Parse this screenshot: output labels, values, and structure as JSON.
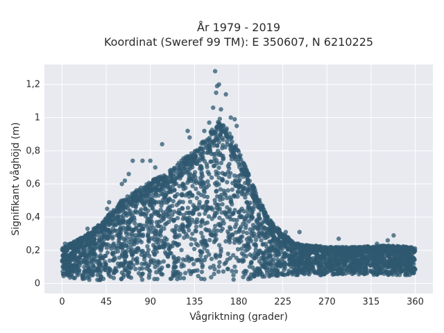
{
  "chart_data": {
    "type": "scatter",
    "title_line1": "År 1979 - 2019",
    "title_line2": "Koordinat (Sweref 99 TM): E 350607, N 6210225",
    "xlabel": "Vågriktning (grader)",
    "ylabel": "Signifikant våghöjd (m)",
    "xlim": [
      -18,
      378
    ],
    "ylim": [
      -0.06,
      1.32
    ],
    "xticks": [
      0,
      45,
      90,
      135,
      180,
      225,
      270,
      315,
      360
    ],
    "xtick_labels": [
      "0",
      "45",
      "90",
      "135",
      "180",
      "225",
      "270",
      "315",
      "360"
    ],
    "yticks": [
      0,
      0.2,
      0.4,
      0.6,
      0.8,
      1.0,
      1.2
    ],
    "ytick_labels": [
      "0",
      "0,2",
      "0,4",
      "0,6",
      "0,8",
      "1",
      "1,2"
    ],
    "grid": true,
    "marker_color": "#2f5870",
    "background_color": "#e8eaf0",
    "envelope": {
      "x": [
        0,
        15,
        30,
        45,
        60,
        75,
        90,
        105,
        120,
        135,
        150,
        160,
        170,
        180,
        190,
        200,
        210,
        225,
        240,
        270,
        300,
        330,
        360
      ],
      "upper": [
        0.22,
        0.26,
        0.32,
        0.4,
        0.5,
        0.56,
        0.62,
        0.66,
        0.74,
        0.8,
        0.9,
        1.0,
        0.93,
        0.8,
        0.66,
        0.52,
        0.4,
        0.3,
        0.24,
        0.22,
        0.22,
        0.23,
        0.22
      ],
      "lower": [
        0.04,
        0.03,
        0.02,
        0.02,
        0.02,
        0.02,
        0.02,
        0.02,
        0.02,
        0.02,
        0.02,
        0.02,
        0.02,
        0.02,
        0.02,
        0.03,
        0.04,
        0.05,
        0.05,
        0.05,
        0.05,
        0.05,
        0.05
      ]
    },
    "outliers": [
      {
        "x": 156,
        "y": 1.28
      },
      {
        "x": 160,
        "y": 1.2
      },
      {
        "x": 158,
        "y": 1.19
      },
      {
        "x": 157,
        "y": 1.15
      },
      {
        "x": 167,
        "y": 1.14
      },
      {
        "x": 154,
        "y": 1.06
      },
      {
        "x": 162,
        "y": 1.05
      },
      {
        "x": 172,
        "y": 1.0
      },
      {
        "x": 176,
        "y": 0.99
      },
      {
        "x": 150,
        "y": 0.97
      },
      {
        "x": 178,
        "y": 0.95
      },
      {
        "x": 145,
        "y": 0.92
      },
      {
        "x": 128,
        "y": 0.92
      },
      {
        "x": 102,
        "y": 0.84
      },
      {
        "x": 130,
        "y": 0.88
      },
      {
        "x": 82,
        "y": 0.74
      },
      {
        "x": 72,
        "y": 0.74
      },
      {
        "x": 90,
        "y": 0.74
      },
      {
        "x": 95,
        "y": 0.7
      },
      {
        "x": 68,
        "y": 0.66
      },
      {
        "x": 64,
        "y": 0.62
      },
      {
        "x": 61,
        "y": 0.6
      },
      {
        "x": 48,
        "y": 0.49
      },
      {
        "x": 46,
        "y": 0.45
      },
      {
        "x": 38,
        "y": 0.34
      },
      {
        "x": 26,
        "y": 0.33
      },
      {
        "x": 228,
        "y": 0.31
      },
      {
        "x": 242,
        "y": 0.31
      },
      {
        "x": 282,
        "y": 0.27
      },
      {
        "x": 338,
        "y": 0.29
      },
      {
        "x": 332,
        "y": 0.26
      },
      {
        "x": 321,
        "y": 0.24
      },
      {
        "x": 3,
        "y": 0.24
      },
      {
        "x": 200,
        "y": 0.46
      },
      {
        "x": 196,
        "y": 0.52
      },
      {
        "x": 190,
        "y": 0.57
      },
      {
        "x": 208,
        "y": 0.38
      },
      {
        "x": 185,
        "y": 0.68
      },
      {
        "x": 216,
        "y": 0.33
      }
    ]
  }
}
